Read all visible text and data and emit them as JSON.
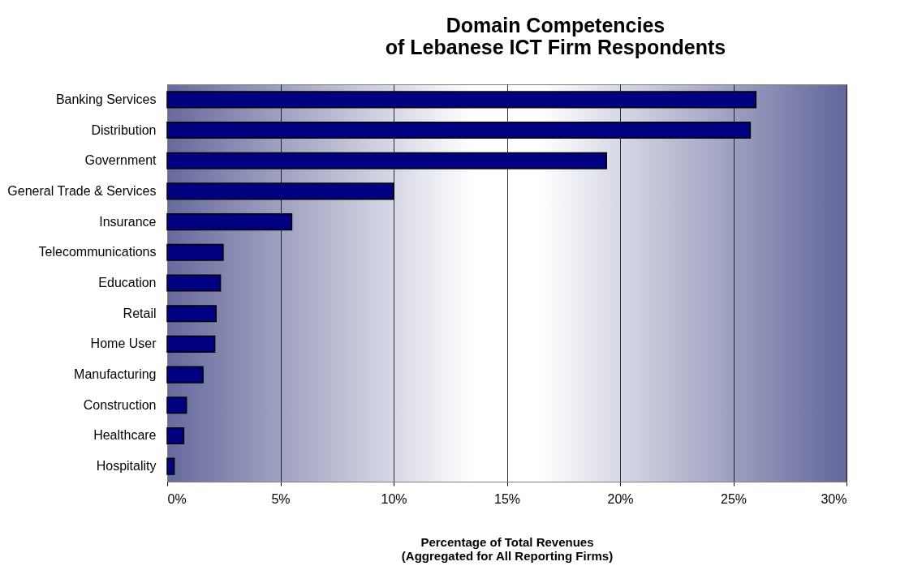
{
  "chart_data": {
    "type": "bar",
    "orientation": "horizontal",
    "title": [
      "Domain Competencies",
      "of Lebanese ICT Firm Respondents"
    ],
    "xlabel": [
      "Percentage of Total Revenues",
      "(Aggregated for All Reporting Firms)"
    ],
    "categories": [
      "Banking Services",
      "Distribution",
      "Government",
      "General Trade & Services",
      "Insurance",
      "Telecommunications",
      "Education",
      "Retail",
      "Home User",
      "Manufacturing",
      "Construction",
      "Healthcare",
      "Hospitality"
    ],
    "values": [
      26.0,
      25.75,
      19.4,
      10.0,
      5.5,
      2.47,
      2.35,
      2.16,
      2.1,
      1.58,
      0.85,
      0.73,
      0.31
    ],
    "color": "#000080",
    "xlim": [
      0,
      30
    ],
    "xticks": [
      {
        "value": 0,
        "label": "0%"
      },
      {
        "value": 5,
        "label": "5%"
      },
      {
        "value": 10,
        "label": "10%"
      },
      {
        "value": 15,
        "label": "15%"
      },
      {
        "value": 20,
        "label": "20%"
      },
      {
        "value": 25,
        "label": "25%"
      },
      {
        "value": 30,
        "label": "30%"
      }
    ],
    "grid": "x"
  }
}
